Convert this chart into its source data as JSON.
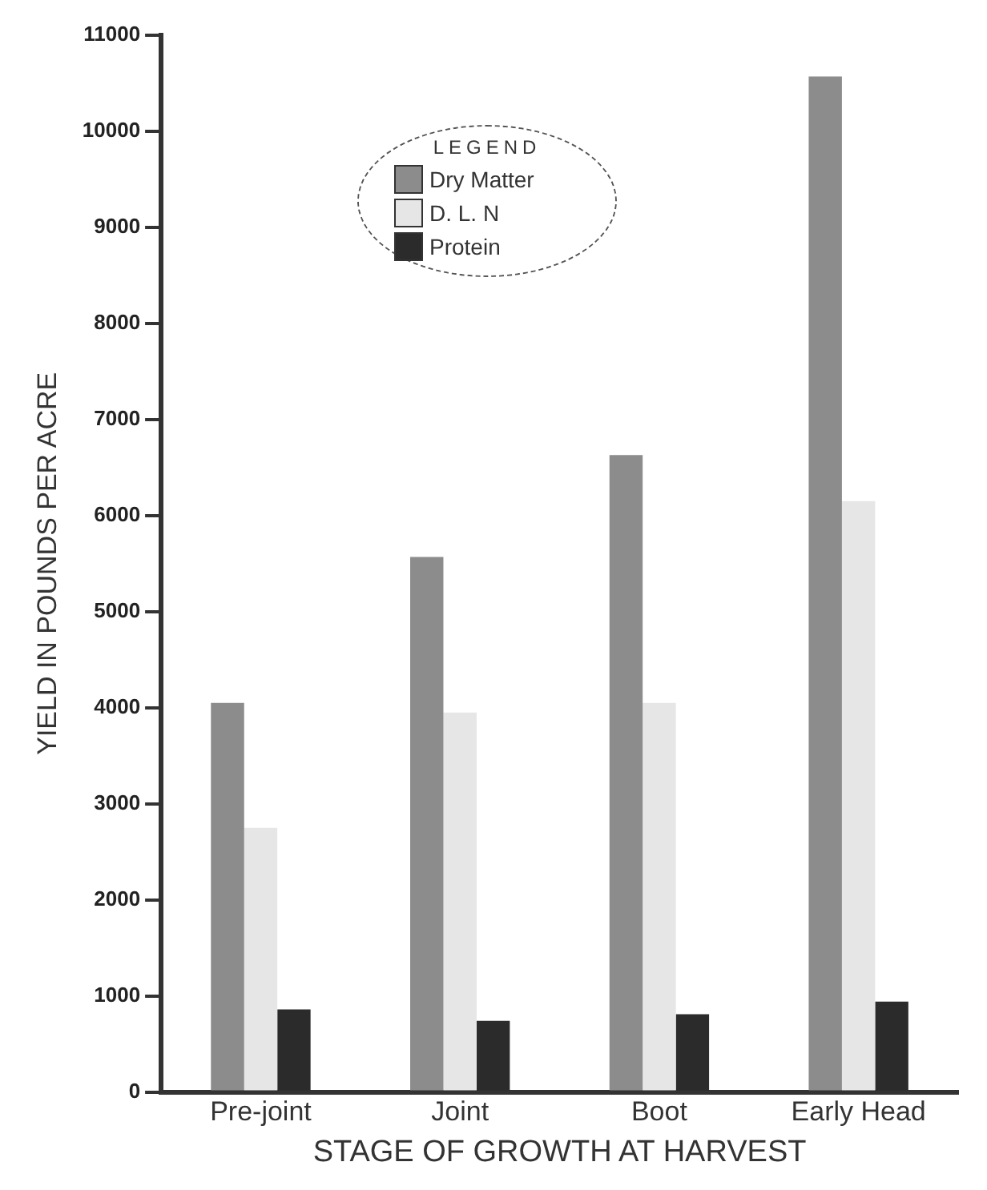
{
  "chart_data": {
    "type": "bar",
    "xlabel": "STAGE OF GROWTH AT HARVEST",
    "ylabel": "YIELD IN POUNDS PER ACRE",
    "legend_title": "LEGEND",
    "categories": [
      "Pre-joint",
      "Joint",
      "Boot",
      "Early Head"
    ],
    "series": [
      {
        "name": "Dry Matter",
        "color": "#8c8c8c",
        "values": [
          4050,
          5570,
          6630,
          10570
        ]
      },
      {
        "name": "D. L. N",
        "color": "#e6e6e6",
        "values": [
          2750,
          3950,
          4050,
          6150
        ]
      },
      {
        "name": "Protein",
        "color": "#2b2b2b",
        "values": [
          860,
          740,
          810,
          940
        ]
      }
    ],
    "ylim": [
      0,
      11000
    ],
    "yticks": [
      0,
      1000,
      2000,
      3000,
      4000,
      5000,
      6000,
      7000,
      8000,
      9000,
      10000,
      11000
    ],
    "grid": false,
    "legend": "top left"
  }
}
